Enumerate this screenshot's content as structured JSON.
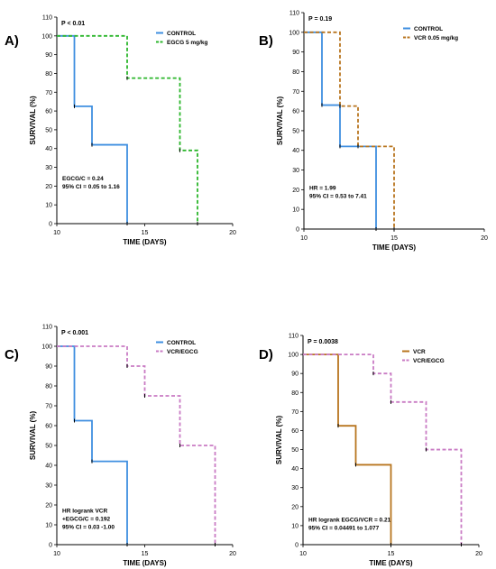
{
  "colors": {
    "blue": "#3f8fe0",
    "green": "#2bb62b",
    "orange": "#b8751f",
    "purple": "#c97bc4",
    "axis": "#000000"
  },
  "chart_data": [
    {
      "type": "line",
      "panel_label": "A)",
      "pvalue": "P < 0.01",
      "xlabel": "TIME  (DAYS)",
      "ylabel": "SURVIVAL (%)",
      "xlim": [
        10,
        20
      ],
      "ylim": [
        0,
        110
      ],
      "xticks": [
        10,
        15,
        20
      ],
      "yticks": [
        0,
        10,
        20,
        30,
        40,
        50,
        60,
        70,
        80,
        90,
        100,
        110
      ],
      "legend_position": "top-right",
      "series": [
        {
          "name": "CONTROL",
          "color": "#3f8fe0",
          "style": "solid",
          "x": [
            10,
            11,
            12,
            14
          ],
          "y": [
            100,
            62.5,
            42,
            0
          ]
        },
        {
          "name": "EGCG 5 mg/kg",
          "color": "#2bb62b",
          "style": "dashed",
          "x": [
            10,
            14,
            17,
            18
          ],
          "y": [
            100,
            77.5,
            39,
            0
          ]
        }
      ],
      "annotations": [
        "EGCG/C = 0.24",
        "95% CI = 0.05 to 1.16"
      ]
    },
    {
      "type": "line",
      "panel_label": "B)",
      "pvalue": "P = 0.19",
      "xlabel": "TIME  (DAYS)",
      "ylabel": "SURVIVAL (%)",
      "xlim": [
        10,
        20
      ],
      "ylim": [
        0,
        110
      ],
      "xticks": [
        10,
        15,
        20
      ],
      "yticks": [
        0,
        10,
        20,
        30,
        40,
        50,
        60,
        70,
        80,
        90,
        100,
        110
      ],
      "legend_position": "top-right",
      "series": [
        {
          "name": "CONTROL",
          "color": "#3f8fe0",
          "style": "solid",
          "x": [
            10,
            11,
            12,
            14
          ],
          "y": [
            100,
            63,
            42,
            0
          ]
        },
        {
          "name": "VCR 0.05 mg/kg",
          "color": "#b8751f",
          "style": "dashed",
          "x": [
            10,
            12,
            13,
            15
          ],
          "y": [
            100,
            62.5,
            42,
            0
          ]
        }
      ],
      "annotations": [
        "HR  = 1.99",
        "95% CI = 0.53 to 7.41"
      ]
    },
    {
      "type": "line",
      "panel_label": "C)",
      "pvalue": "P <  0.001",
      "xlabel": "TIME  (DAYS)",
      "ylabel": "SURVIVAL (%)",
      "xlim": [
        10,
        20
      ],
      "ylim": [
        0,
        110
      ],
      "xticks": [
        10,
        15,
        20
      ],
      "yticks": [
        0,
        10,
        20,
        30,
        40,
        50,
        60,
        70,
        80,
        90,
        100,
        110
      ],
      "legend_position": "top-right",
      "series": [
        {
          "name": "CONTROL",
          "color": "#3f8fe0",
          "style": "solid",
          "x": [
            10,
            11,
            12,
            14
          ],
          "y": [
            100,
            62.5,
            42,
            0
          ]
        },
        {
          "name": "VCR/EGCG",
          "color": "#c97bc4",
          "style": "dashed",
          "x": [
            10,
            14,
            15,
            17,
            19
          ],
          "y": [
            100,
            90,
            75,
            50,
            0
          ]
        }
      ],
      "annotations": [
        "HR logrank VCR",
        "+EGCG/C = 0.192",
        "95% CI = 0.03 -1.00"
      ]
    },
    {
      "type": "line",
      "panel_label": "D)",
      "pvalue": "P = 0.0038",
      "xlabel": "TIME  (DAYS)",
      "ylabel": "SURVIVAL (%)",
      "xlim": [
        10,
        20
      ],
      "ylim": [
        0,
        110
      ],
      "xticks": [
        10,
        15,
        20
      ],
      "yticks": [
        0,
        10,
        20,
        30,
        40,
        50,
        60,
        70,
        80,
        90,
        100,
        110
      ],
      "legend_position": "top-right",
      "series": [
        {
          "name": "VCR",
          "color": "#b8751f",
          "style": "solid",
          "x": [
            10,
            12,
            13,
            15
          ],
          "y": [
            100,
            62.5,
            42,
            0
          ]
        },
        {
          "name": "VCR/EGCG",
          "color": "#c97bc4",
          "style": "dashed",
          "x": [
            10,
            14,
            15,
            17,
            19
          ],
          "y": [
            100,
            90,
            75,
            50,
            0
          ]
        }
      ],
      "annotations": [
        "HR logrank EGCG/VCR = 0.21",
        "95% CI = 0.04491 to 1.077"
      ]
    }
  ]
}
